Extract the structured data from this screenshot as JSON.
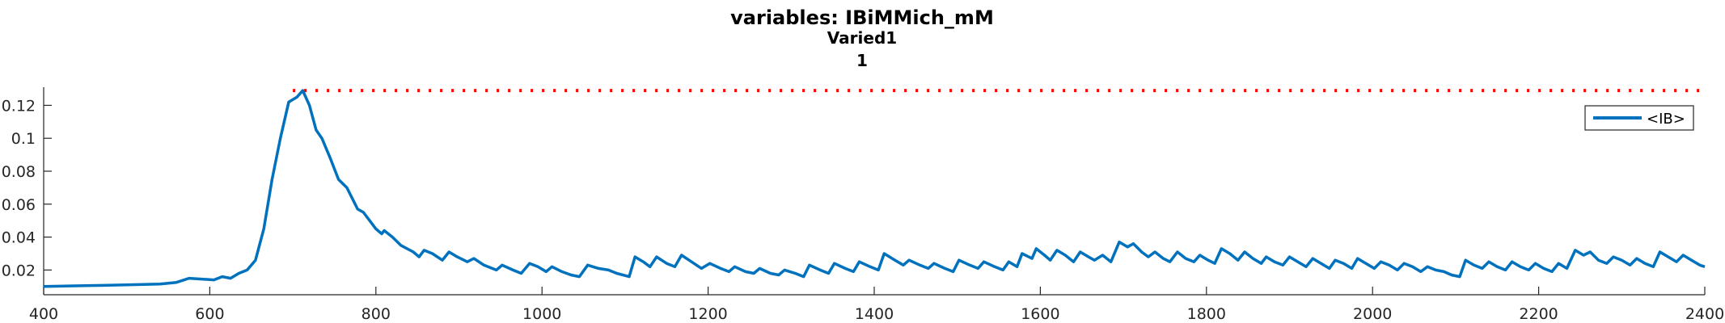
{
  "chart_data": {
    "type": "line",
    "title": "variables: IBiMMich_mM",
    "subtitle_lines": [
      "Varied1",
      "1"
    ],
    "xlabel": "",
    "ylabel": "",
    "xlim": [
      400,
      2400
    ],
    "ylim": [
      0.005,
      0.131
    ],
    "xticks": [
      400,
      600,
      800,
      1000,
      1200,
      1400,
      1600,
      1800,
      2000,
      2200,
      2400
    ],
    "yticks": [
      0.02,
      0.04,
      0.06,
      0.08,
      0.1,
      0.12
    ],
    "ytick_labels": [
      "0.02",
      "0.04",
      "0.06",
      "0.08",
      "0.1",
      "0.12"
    ],
    "grid": false,
    "legend_position": "top-right",
    "colors": {
      "series": "#0072BD",
      "reference_line": "#FF0000"
    },
    "reference_line": {
      "y": 0.129,
      "x_range": [
        700,
        2400
      ],
      "style": "dotted"
    },
    "series": [
      {
        "name": "<IB>",
        "points": [
          [
            400,
            0.01
          ],
          [
            450,
            0.0105
          ],
          [
            500,
            0.011
          ],
          [
            540,
            0.0115
          ],
          [
            560,
            0.0125
          ],
          [
            575,
            0.015
          ],
          [
            590,
            0.0145
          ],
          [
            605,
            0.014
          ],
          [
            615,
            0.016
          ],
          [
            625,
            0.015
          ],
          [
            635,
            0.018
          ],
          [
            645,
            0.02
          ],
          [
            655,
            0.026
          ],
          [
            665,
            0.045
          ],
          [
            675,
            0.075
          ],
          [
            685,
            0.1
          ],
          [
            695,
            0.122
          ],
          [
            705,
            0.125
          ],
          [
            712,
            0.129
          ],
          [
            720,
            0.12
          ],
          [
            728,
            0.105
          ],
          [
            735,
            0.1
          ],
          [
            745,
            0.088
          ],
          [
            755,
            0.075
          ],
          [
            765,
            0.07
          ],
          [
            778,
            0.057
          ],
          [
            785,
            0.055
          ],
          [
            800,
            0.045
          ],
          [
            807,
            0.042
          ],
          [
            810,
            0.044
          ],
          [
            820,
            0.04
          ],
          [
            830,
            0.035
          ],
          [
            845,
            0.031
          ],
          [
            852,
            0.028
          ],
          [
            858,
            0.032
          ],
          [
            868,
            0.03
          ],
          [
            880,
            0.026
          ],
          [
            888,
            0.031
          ],
          [
            898,
            0.028
          ],
          [
            910,
            0.025
          ],
          [
            918,
            0.027
          ],
          [
            930,
            0.023
          ],
          [
            945,
            0.02
          ],
          [
            952,
            0.023
          ],
          [
            965,
            0.02
          ],
          [
            975,
            0.018
          ],
          [
            985,
            0.024
          ],
          [
            995,
            0.022
          ],
          [
            1005,
            0.019
          ],
          [
            1012,
            0.022
          ],
          [
            1024,
            0.019
          ],
          [
            1035,
            0.017
          ],
          [
            1045,
            0.016
          ],
          [
            1055,
            0.023
          ],
          [
            1068,
            0.021
          ],
          [
            1080,
            0.02
          ],
          [
            1090,
            0.018
          ],
          [
            1105,
            0.016
          ],
          [
            1112,
            0.028
          ],
          [
            1122,
            0.025
          ],
          [
            1130,
            0.022
          ],
          [
            1138,
            0.028
          ],
          [
            1150,
            0.024
          ],
          [
            1160,
            0.022
          ],
          [
            1168,
            0.029
          ],
          [
            1180,
            0.025
          ],
          [
            1192,
            0.021
          ],
          [
            1202,
            0.024
          ],
          [
            1215,
            0.021
          ],
          [
            1225,
            0.019
          ],
          [
            1232,
            0.022
          ],
          [
            1245,
            0.019
          ],
          [
            1255,
            0.018
          ],
          [
            1262,
            0.021
          ],
          [
            1275,
            0.018
          ],
          [
            1285,
            0.017
          ],
          [
            1292,
            0.02
          ],
          [
            1305,
            0.018
          ],
          [
            1315,
            0.016
          ],
          [
            1322,
            0.023
          ],
          [
            1335,
            0.02
          ],
          [
            1345,
            0.018
          ],
          [
            1352,
            0.024
          ],
          [
            1365,
            0.021
          ],
          [
            1375,
            0.019
          ],
          [
            1382,
            0.025
          ],
          [
            1395,
            0.022
          ],
          [
            1405,
            0.02
          ],
          [
            1412,
            0.03
          ],
          [
            1425,
            0.026
          ],
          [
            1435,
            0.023
          ],
          [
            1442,
            0.026
          ],
          [
            1455,
            0.023
          ],
          [
            1465,
            0.021
          ],
          [
            1472,
            0.024
          ],
          [
            1485,
            0.021
          ],
          [
            1495,
            0.019
          ],
          [
            1502,
            0.026
          ],
          [
            1515,
            0.023
          ],
          [
            1525,
            0.021
          ],
          [
            1532,
            0.025
          ],
          [
            1545,
            0.022
          ],
          [
            1555,
            0.02
          ],
          [
            1562,
            0.025
          ],
          [
            1572,
            0.022
          ],
          [
            1578,
            0.03
          ],
          [
            1590,
            0.027
          ],
          [
            1595,
            0.033
          ],
          [
            1605,
            0.029
          ],
          [
            1612,
            0.026
          ],
          [
            1620,
            0.032
          ],
          [
            1630,
            0.029
          ],
          [
            1640,
            0.025
          ],
          [
            1648,
            0.031
          ],
          [
            1658,
            0.028
          ],
          [
            1665,
            0.026
          ],
          [
            1675,
            0.029
          ],
          [
            1685,
            0.025
          ],
          [
            1695,
            0.037
          ],
          [
            1705,
            0.034
          ],
          [
            1712,
            0.036
          ],
          [
            1722,
            0.031
          ],
          [
            1730,
            0.028
          ],
          [
            1738,
            0.031
          ],
          [
            1748,
            0.027
          ],
          [
            1756,
            0.025
          ],
          [
            1765,
            0.031
          ],
          [
            1775,
            0.027
          ],
          [
            1785,
            0.025
          ],
          [
            1792,
            0.029
          ],
          [
            1802,
            0.026
          ],
          [
            1810,
            0.024
          ],
          [
            1818,
            0.033
          ],
          [
            1828,
            0.03
          ],
          [
            1838,
            0.026
          ],
          [
            1846,
            0.031
          ],
          [
            1856,
            0.027
          ],
          [
            1866,
            0.024
          ],
          [
            1872,
            0.028
          ],
          [
            1882,
            0.025
          ],
          [
            1892,
            0.023
          ],
          [
            1900,
            0.028
          ],
          [
            1910,
            0.025
          ],
          [
            1920,
            0.022
          ],
          [
            1928,
            0.027
          ],
          [
            1938,
            0.024
          ],
          [
            1948,
            0.021
          ],
          [
            1955,
            0.026
          ],
          [
            1965,
            0.024
          ],
          [
            1975,
            0.021
          ],
          [
            1982,
            0.027
          ],
          [
            1992,
            0.024
          ],
          [
            2002,
            0.021
          ],
          [
            2010,
            0.025
          ],
          [
            2020,
            0.023
          ],
          [
            2030,
            0.02
          ],
          [
            2038,
            0.024
          ],
          [
            2048,
            0.022
          ],
          [
            2058,
            0.019
          ],
          [
            2066,
            0.022
          ],
          [
            2076,
            0.02
          ],
          [
            2086,
            0.019
          ],
          [
            2095,
            0.017
          ],
          [
            2105,
            0.016
          ],
          [
            2112,
            0.026
          ],
          [
            2122,
            0.023
          ],
          [
            2132,
            0.021
          ],
          [
            2140,
            0.025
          ],
          [
            2150,
            0.022
          ],
          [
            2160,
            0.02
          ],
          [
            2168,
            0.025
          ],
          [
            2178,
            0.022
          ],
          [
            2188,
            0.02
          ],
          [
            2196,
            0.024
          ],
          [
            2206,
            0.021
          ],
          [
            2216,
            0.019
          ],
          [
            2224,
            0.024
          ],
          [
            2234,
            0.021
          ],
          [
            2244,
            0.032
          ],
          [
            2254,
            0.029
          ],
          [
            2262,
            0.031
          ],
          [
            2272,
            0.026
          ],
          [
            2282,
            0.024
          ],
          [
            2290,
            0.028
          ],
          [
            2300,
            0.026
          ],
          [
            2310,
            0.023
          ],
          [
            2318,
            0.027
          ],
          [
            2328,
            0.024
          ],
          [
            2338,
            0.022
          ],
          [
            2346,
            0.031
          ],
          [
            2356,
            0.028
          ],
          [
            2366,
            0.025
          ],
          [
            2374,
            0.029
          ],
          [
            2384,
            0.026
          ],
          [
            2394,
            0.023
          ],
          [
            2400,
            0.022
          ]
        ]
      }
    ]
  }
}
